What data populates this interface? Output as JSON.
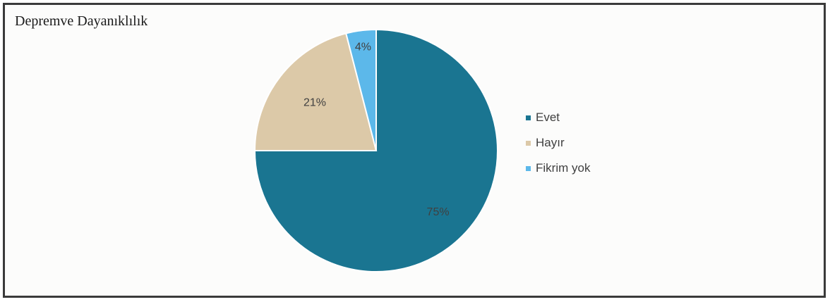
{
  "chart_data": {
    "type": "pie",
    "title": "Depremve Dayanıklılık",
    "categories": [
      "Evet",
      "Hayır",
      "Fikrim yok"
    ],
    "values": [
      75,
      21,
      4
    ],
    "labels": [
      "75%",
      "21%",
      "4%"
    ],
    "colors": [
      "#1a7591",
      "#dcc9a8",
      "#5cb8ea"
    ],
    "label_color": "#404040",
    "legend_position": "right",
    "start_angle": "12 o'clock, clockwise"
  }
}
